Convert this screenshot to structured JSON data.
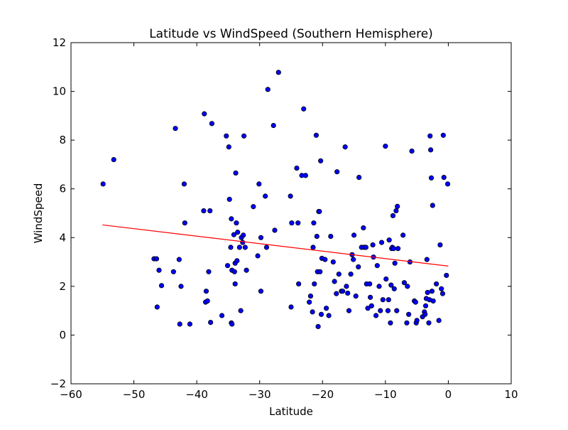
{
  "chart_data": {
    "type": "scatter",
    "title": "Latitude vs WindSpeed (Southern Hemisphere)",
    "xlabel": "Latitude",
    "ylabel": "WindSpeed",
    "xlim": [
      -60,
      10
    ],
    "ylim": [
      -2,
      12
    ],
    "xticks": [
      -60,
      -50,
      -40,
      -30,
      -20,
      -10,
      0,
      10
    ],
    "yticks": [
      -2,
      0,
      2,
      4,
      6,
      8,
      10,
      12
    ],
    "xtick_labels": [
      "−60",
      "−50",
      "−40",
      "−30",
      "−20",
      "−10",
      "0",
      "10"
    ],
    "ytick_labels": [
      "−2",
      "0",
      "2",
      "4",
      "6",
      "8",
      "10",
      "12"
    ],
    "grid": false,
    "colors": {
      "points": "#0000ff",
      "point_edge": "#000000",
      "regression": "#ff0000"
    },
    "regression_line": {
      "x": [
        -55.0,
        0.0
      ],
      "y": [
        4.52,
        2.83
      ]
    },
    "points": [
      [
        -54.9,
        6.2
      ],
      [
        -53.2,
        7.2
      ],
      [
        -46.8,
        3.13
      ],
      [
        -46.4,
        3.13
      ],
      [
        -46.3,
        1.15
      ],
      [
        -46.0,
        2.66
      ],
      [
        -45.6,
        2.03
      ],
      [
        -43.7,
        2.6
      ],
      [
        -43.4,
        8.48
      ],
      [
        -42.8,
        3.1
      ],
      [
        -42.7,
        0.45
      ],
      [
        -42.5,
        2.0
      ],
      [
        -42.0,
        6.2
      ],
      [
        -41.9,
        4.6
      ],
      [
        -41.1,
        0.45
      ],
      [
        -38.9,
        5.1
      ],
      [
        -38.8,
        9.08
      ],
      [
        -38.6,
        1.35
      ],
      [
        -38.5,
        1.8
      ],
      [
        -38.3,
        1.4
      ],
      [
        -38.1,
        2.6
      ],
      [
        -37.9,
        5.1
      ],
      [
        -37.8,
        0.52
      ],
      [
        -37.6,
        8.68
      ],
      [
        -36.0,
        0.8
      ],
      [
        -35.3,
        8.17
      ],
      [
        -35.1,
        2.85
      ],
      [
        -34.9,
        7.72
      ],
      [
        -34.8,
        5.57
      ],
      [
        -34.6,
        3.6
      ],
      [
        -34.5,
        4.77
      ],
      [
        -34.5,
        0.5
      ],
      [
        -34.4,
        0.45
      ],
      [
        -34.4,
        2.66
      ],
      [
        -34.1,
        4.12
      ],
      [
        -34.0,
        2.6
      ],
      [
        -33.9,
        2.1
      ],
      [
        -33.9,
        2.95
      ],
      [
        -33.8,
        6.65
      ],
      [
        -33.7,
        4.6
      ],
      [
        -33.6,
        3.05
      ],
      [
        -33.5,
        4.22
      ],
      [
        -33.2,
        3.6
      ],
      [
        -33.0,
        1.0
      ],
      [
        -32.9,
        4.0
      ],
      [
        -32.7,
        3.8
      ],
      [
        -32.6,
        4.1
      ],
      [
        -32.5,
        8.17
      ],
      [
        -32.3,
        3.6
      ],
      [
        -32.1,
        2.66
      ],
      [
        -31.0,
        5.27
      ],
      [
        -30.3,
        3.25
      ],
      [
        -30.1,
        6.2
      ],
      [
        -29.8,
        1.8
      ],
      [
        -29.8,
        4.0
      ],
      [
        -29.1,
        5.7
      ],
      [
        -28.9,
        3.6
      ],
      [
        -28.7,
        10.08
      ],
      [
        -27.8,
        8.6
      ],
      [
        -27.6,
        4.3
      ],
      [
        -27.0,
        10.78
      ],
      [
        -25.1,
        5.7
      ],
      [
        -25.0,
        1.15
      ],
      [
        -24.9,
        4.6
      ],
      [
        -24.1,
        6.85
      ],
      [
        -23.9,
        4.6
      ],
      [
        -23.8,
        2.1
      ],
      [
        -23.3,
        6.55
      ],
      [
        -23.0,
        9.28
      ],
      [
        -22.7,
        6.55
      ],
      [
        -22.1,
        1.35
      ],
      [
        -21.9,
        1.6
      ],
      [
        -21.6,
        0.95
      ],
      [
        -21.5,
        3.6
      ],
      [
        -21.4,
        4.6
      ],
      [
        -21.3,
        2.1
      ],
      [
        -21.0,
        8.2
      ],
      [
        -20.9,
        4.05
      ],
      [
        -20.8,
        2.6
      ],
      [
        -20.7,
        0.35
      ],
      [
        -20.6,
        5.07
      ],
      [
        -20.5,
        5.07
      ],
      [
        -20.4,
        2.6
      ],
      [
        -20.3,
        7.15
      ],
      [
        -20.2,
        0.85
      ],
      [
        -20.1,
        3.15
      ],
      [
        -19.6,
        3.1
      ],
      [
        -19.4,
        1.1
      ],
      [
        -19.0,
        0.8
      ],
      [
        -18.7,
        4.05
      ],
      [
        -18.3,
        3.0
      ],
      [
        -18.1,
        2.2
      ],
      [
        -17.8,
        1.7
      ],
      [
        -17.7,
        6.7
      ],
      [
        -17.4,
        2.5
      ],
      [
        -17.0,
        1.8
      ],
      [
        -16.8,
        1.8
      ],
      [
        -16.4,
        7.72
      ],
      [
        -16.2,
        2.0
      ],
      [
        -16.0,
        1.72
      ],
      [
        -15.8,
        1.0
      ],
      [
        -15.5,
        2.5
      ],
      [
        -15.3,
        3.3
      ],
      [
        -15.1,
        3.1
      ],
      [
        -15.0,
        4.1
      ],
      [
        -14.7,
        1.6
      ],
      [
        -14.3,
        2.8
      ],
      [
        -14.2,
        6.47
      ],
      [
        -13.8,
        3.6
      ],
      [
        -13.5,
        4.4
      ],
      [
        -13.4,
        3.6
      ],
      [
        -13.1,
        3.6
      ],
      [
        -13.0,
        2.1
      ],
      [
        -12.8,
        1.1
      ],
      [
        -12.5,
        2.1
      ],
      [
        -12.4,
        1.55
      ],
      [
        -12.2,
        1.2
      ],
      [
        -12.0,
        3.7
      ],
      [
        -11.9,
        3.2
      ],
      [
        -11.5,
        0.8
      ],
      [
        -11.3,
        2.85
      ],
      [
        -11.0,
        2.0
      ],
      [
        -10.8,
        1.0
      ],
      [
        -10.6,
        3.8
      ],
      [
        -10.4,
        1.45
      ],
      [
        -10.0,
        7.75
      ],
      [
        -9.9,
        2.3
      ],
      [
        -9.6,
        1.0
      ],
      [
        -9.5,
        1.45
      ],
      [
        -9.4,
        3.9
      ],
      [
        -9.2,
        0.5
      ],
      [
        -9.1,
        2.05
      ],
      [
        -9.0,
        3.55
      ],
      [
        -8.9,
        3.6
      ],
      [
        -8.8,
        4.9
      ],
      [
        -8.7,
        3.55
      ],
      [
        -8.6,
        1.9
      ],
      [
        -8.5,
        2.95
      ],
      [
        -8.3,
        5.1
      ],
      [
        -8.2,
        1.0
      ],
      [
        -8.1,
        5.28
      ],
      [
        -8.0,
        3.55
      ],
      [
        -7.2,
        4.1
      ],
      [
        -7.0,
        2.15
      ],
      [
        -6.6,
        0.5
      ],
      [
        -6.5,
        2.0
      ],
      [
        -6.3,
        0.85
      ],
      [
        -6.1,
        3.0
      ],
      [
        -5.8,
        7.55
      ],
      [
        -5.4,
        1.4
      ],
      [
        -5.2,
        1.35
      ],
      [
        -5.1,
        0.5
      ],
      [
        -5.0,
        0.6
      ],
      [
        -4.1,
        0.75
      ],
      [
        -3.8,
        0.95
      ],
      [
        -3.7,
        0.85
      ],
      [
        -3.6,
        1.2
      ],
      [
        -3.5,
        1.5
      ],
      [
        -3.4,
        3.1
      ],
      [
        -3.3,
        1.75
      ],
      [
        -3.1,
        0.5
      ],
      [
        -3.0,
        1.45
      ],
      [
        -2.9,
        8.17
      ],
      [
        -2.8,
        7.6
      ],
      [
        -2.7,
        6.45
      ],
      [
        -2.6,
        1.8
      ],
      [
        -2.5,
        5.32
      ],
      [
        -2.4,
        1.4
      ],
      [
        -1.9,
        2.1
      ],
      [
        -1.5,
        0.6
      ],
      [
        -1.3,
        3.7
      ],
      [
        -1.1,
        1.9
      ],
      [
        -0.9,
        1.7
      ],
      [
        -0.8,
        8.2
      ],
      [
        -0.7,
        6.47
      ],
      [
        -0.3,
        2.45
      ],
      [
        -0.1,
        6.2
      ]
    ]
  }
}
